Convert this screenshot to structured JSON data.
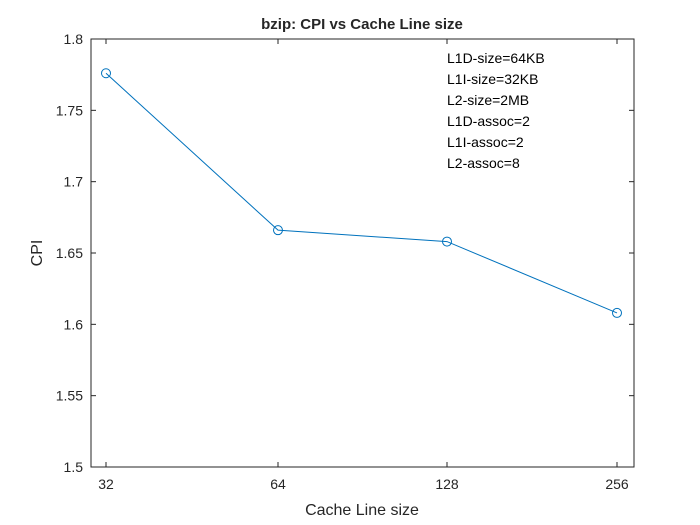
{
  "chart_data": {
    "type": "line",
    "title": "bzip: CPI vs Cache Line size",
    "xlabel": "Cache Line size",
    "ylabel": "CPI",
    "categories": [
      "32",
      "64",
      "128",
      "256"
    ],
    "series": [
      {
        "values": [
          1.776,
          1.666,
          1.658,
          1.608
        ],
        "color": "#0072BD",
        "marker": "circle"
      }
    ],
    "ylim": [
      1.5,
      1.8
    ],
    "yticks": [
      "1.5",
      "1.55",
      "1.6",
      "1.65",
      "1.7",
      "1.75",
      "1.8"
    ],
    "grid": false,
    "annotations": [
      "L1D-size=64KB",
      "L1I-size=32KB",
      "L2-size=2MB",
      "L1D-assoc=2",
      "L1I-assoc=2",
      "L2-assoc=8"
    ]
  }
}
